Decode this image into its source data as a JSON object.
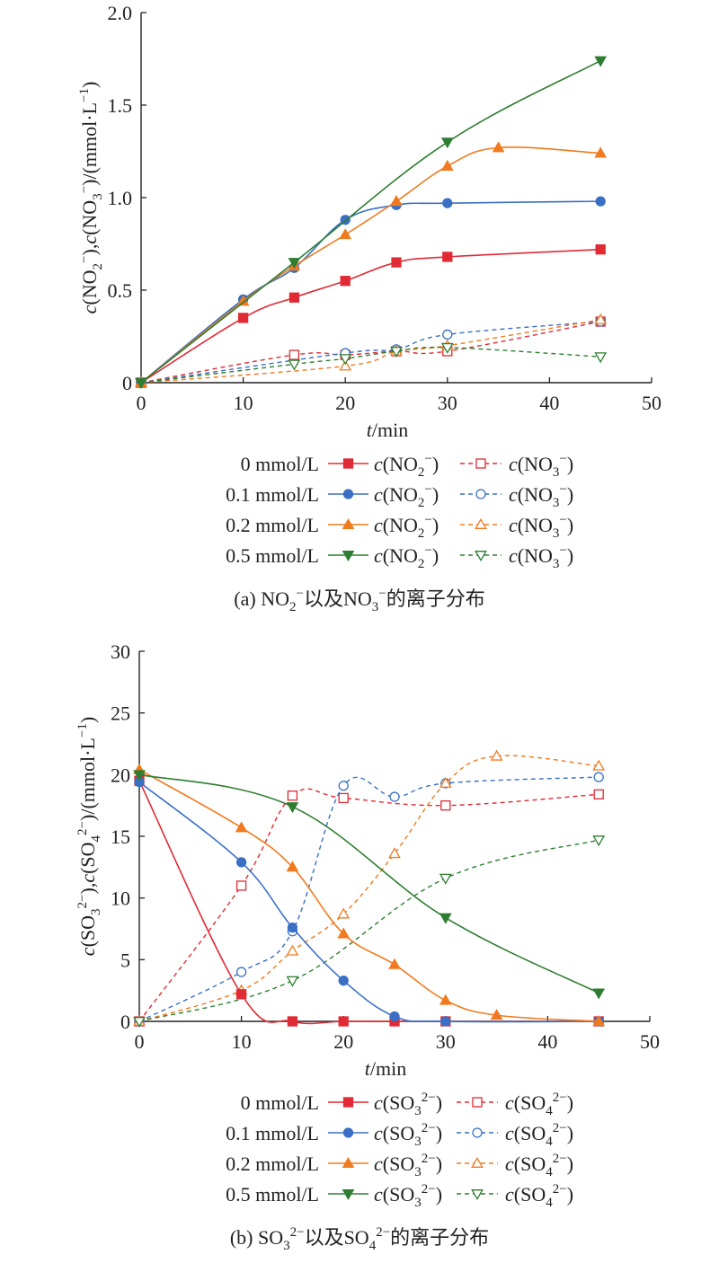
{
  "colors": {
    "c0": "#e02a35",
    "c01": "#3a6fc4",
    "c02": "#f07a1f",
    "c05": "#2f7d32",
    "axis": "#222222"
  },
  "chart_data": [
    {
      "type": "line",
      "ylabel": "c(NO2⁻),c(NO3⁻)/(mmol·L⁻¹)",
      "xlabel": "t/min",
      "caption": "(a) NO2⁻以及NO3⁻的离子分布",
      "xlim": [
        0,
        50
      ],
      "ylim": [
        0,
        2.0
      ],
      "xticks": [
        "0",
        "10",
        "20",
        "30",
        "40",
        "50"
      ],
      "yticks": [
        "0",
        "0.5",
        "1.0",
        "1.5",
        "2.0"
      ],
      "legend": [
        {
          "label": "0 mmol/L",
          "solid": "c(NO2⁻)",
          "dashed": "c(NO3⁻)"
        },
        {
          "label": "0.1 mmol/L",
          "solid": "c(NO2⁻)",
          "dashed": "c(NO3⁻)"
        },
        {
          "label": "0.2 mmol/L",
          "solid": "c(NO2⁻)",
          "dashed": "c(NO3⁻)"
        },
        {
          "label": "0.5 mmol/L",
          "solid": "c(NO2⁻)",
          "dashed": "c(NO3⁻)"
        }
      ],
      "series": [
        {
          "name": "0 mmol/L c(NO2⁻)",
          "color": "c0",
          "marker": "square",
          "filled": true,
          "dashed": false,
          "points": [
            [
              0,
              0
            ],
            [
              10,
              0.35
            ],
            [
              15,
              0.46
            ],
            [
              20,
              0.55
            ],
            [
              25,
              0.65
            ],
            [
              30,
              0.68
            ],
            [
              45,
              0.72
            ]
          ]
        },
        {
          "name": "0.1 mmol/L c(NO2⁻)",
          "color": "c01",
          "marker": "circle",
          "filled": true,
          "dashed": false,
          "points": [
            [
              0,
              0
            ],
            [
              10,
              0.45
            ],
            [
              15,
              0.62
            ],
            [
              20,
              0.88
            ],
            [
              25,
              0.96
            ],
            [
              30,
              0.97
            ],
            [
              45,
              0.98
            ]
          ]
        },
        {
          "name": "0.2 mmol/L c(NO2⁻)",
          "color": "c02",
          "marker": "triangle-up",
          "filled": true,
          "dashed": false,
          "points": [
            [
              0,
              0
            ],
            [
              10,
              0.44
            ],
            [
              15,
              0.63
            ],
            [
              20,
              0.8
            ],
            [
              25,
              0.98
            ],
            [
              30,
              1.17
            ],
            [
              35,
              1.27
            ],
            [
              45,
              1.24
            ]
          ]
        },
        {
          "name": "0.5 mmol/L c(NO2⁻)",
          "color": "c05",
          "marker": "triangle-down",
          "filled": true,
          "dashed": false,
          "points": [
            [
              0,
              0
            ],
            [
              15,
              0.65
            ],
            [
              30,
              1.3
            ],
            [
              45,
              1.74
            ]
          ]
        },
        {
          "name": "0 mmol/L c(NO3⁻)",
          "color": "c0",
          "marker": "square",
          "filled": false,
          "dashed": true,
          "points": [
            [
              0,
              0
            ],
            [
              15,
              0.15
            ],
            [
              20,
              0.15
            ],
            [
              25,
              0.17
            ],
            [
              30,
              0.17
            ],
            [
              45,
              0.33
            ]
          ]
        },
        {
          "name": "0.1 mmol/L c(NO3⁻)",
          "color": "c01",
          "marker": "circle",
          "filled": false,
          "dashed": true,
          "points": [
            [
              0,
              0
            ],
            [
              20,
              0.16
            ],
            [
              25,
              0.18
            ],
            [
              30,
              0.26
            ],
            [
              45,
              0.33
            ]
          ]
        },
        {
          "name": "0.2 mmol/L c(NO3⁻)",
          "color": "c02",
          "marker": "triangle-up",
          "filled": false,
          "dashed": true,
          "points": [
            [
              0,
              0
            ],
            [
              20,
              0.09
            ],
            [
              25,
              0.17
            ],
            [
              30,
              0.2
            ],
            [
              45,
              0.34
            ]
          ]
        },
        {
          "name": "0.5 mmol/L c(NO3⁻)",
          "color": "c05",
          "marker": "triangle-down",
          "filled": false,
          "dashed": true,
          "points": [
            [
              0,
              0
            ],
            [
              15,
              0.1
            ],
            [
              20,
              0.13
            ],
            [
              25,
              0.17
            ],
            [
              30,
              0.19
            ],
            [
              45,
              0.14
            ]
          ]
        }
      ]
    },
    {
      "type": "line",
      "ylabel": "c(SO3²⁻),c(SO4²⁻)/(mmol·L⁻¹)",
      "xlabel": "t/min",
      "caption": "(b) SO3²⁻以及SO4²⁻的离子分布",
      "xlim": [
        0,
        50
      ],
      "ylim": [
        0,
        30
      ],
      "xticks": [
        "0",
        "10",
        "20",
        "30",
        "40",
        "50"
      ],
      "yticks": [
        "0",
        "5",
        "10",
        "15",
        "20",
        "25",
        "30"
      ],
      "legend": [
        {
          "label": "0 mmol/L",
          "solid": "c(SO3²⁻)",
          "dashed": "c(SO4²⁻)"
        },
        {
          "label": "0.1 mmol/L",
          "solid": "c(SO3²⁻)",
          "dashed": "c(SO4²⁻)"
        },
        {
          "label": "0.2 mmol/L",
          "solid": "c(SO3²⁻)",
          "dashed": "c(SO4²⁻)"
        },
        {
          "label": "0.5 mmol/L",
          "solid": "c(SO3²⁻)",
          "dashed": "c(SO4²⁻)"
        }
      ],
      "series": [
        {
          "name": "0 mmol/L c(SO3²⁻)",
          "color": "c0",
          "marker": "square",
          "filled": true,
          "dashed": false,
          "points": [
            [
              0,
              19.5
            ],
            [
              10,
              2.2
            ],
            [
              15,
              0
            ],
            [
              20,
              0
            ],
            [
              25,
              0
            ],
            [
              30,
              0
            ],
            [
              45,
              0
            ]
          ]
        },
        {
          "name": "0.1 mmol/L c(SO3²⁻)",
          "color": "c01",
          "marker": "circle",
          "filled": true,
          "dashed": false,
          "points": [
            [
              0,
              19.4
            ],
            [
              10,
              12.9
            ],
            [
              15,
              7.6
            ],
            [
              20,
              3.3
            ],
            [
              25,
              0.4
            ],
            [
              30,
              0
            ],
            [
              45,
              0
            ]
          ]
        },
        {
          "name": "0.2 mmol/L c(SO3²⁻)",
          "color": "c02",
          "marker": "triangle-up",
          "filled": true,
          "dashed": false,
          "points": [
            [
              0,
              20.4
            ],
            [
              10,
              15.7
            ],
            [
              15,
              12.5
            ],
            [
              20,
              7.1
            ],
            [
              25,
              4.6
            ],
            [
              30,
              1.7
            ],
            [
              35,
              0.5
            ],
            [
              45,
              0
            ]
          ]
        },
        {
          "name": "0.5 mmol/L c(SO3²⁻)",
          "color": "c05",
          "marker": "triangle-down",
          "filled": true,
          "dashed": false,
          "points": [
            [
              0,
              20.0
            ],
            [
              15,
              17.4
            ],
            [
              30,
              8.4
            ],
            [
              45,
              2.3
            ]
          ]
        },
        {
          "name": "0 mmol/L c(SO4²⁻)",
          "color": "c0",
          "marker": "square",
          "filled": false,
          "dashed": true,
          "points": [
            [
              0,
              0
            ],
            [
              10,
              11.0
            ],
            [
              15,
              18.3
            ],
            [
              20,
              18.1
            ],
            [
              30,
              17.5
            ],
            [
              45,
              18.4
            ]
          ]
        },
        {
          "name": "0.1 mmol/L c(SO4²⁻)",
          "color": "c01",
          "marker": "circle",
          "filled": false,
          "dashed": true,
          "points": [
            [
              0,
              0
            ],
            [
              10,
              4.0
            ],
            [
              15,
              7.3
            ],
            [
              20,
              19.1
            ],
            [
              25,
              18.2
            ],
            [
              30,
              19.3
            ],
            [
              45,
              19.8
            ]
          ]
        },
        {
          "name": "0.2 mmol/L c(SO4²⁻)",
          "color": "c02",
          "marker": "triangle-up",
          "filled": false,
          "dashed": true,
          "points": [
            [
              0,
              0
            ],
            [
              10,
              2.5
            ],
            [
              15,
              5.7
            ],
            [
              20,
              8.7
            ],
            [
              25,
              13.6
            ],
            [
              30,
              19.3
            ],
            [
              35,
              21.5
            ],
            [
              45,
              20.7
            ]
          ]
        },
        {
          "name": "0.5 mmol/L c(SO4²⁻)",
          "color": "c05",
          "marker": "triangle-down",
          "filled": false,
          "dashed": true,
          "points": [
            [
              0,
              0
            ],
            [
              15,
              3.3
            ],
            [
              30,
              11.6
            ],
            [
              45,
              14.7
            ]
          ]
        }
      ]
    }
  ]
}
